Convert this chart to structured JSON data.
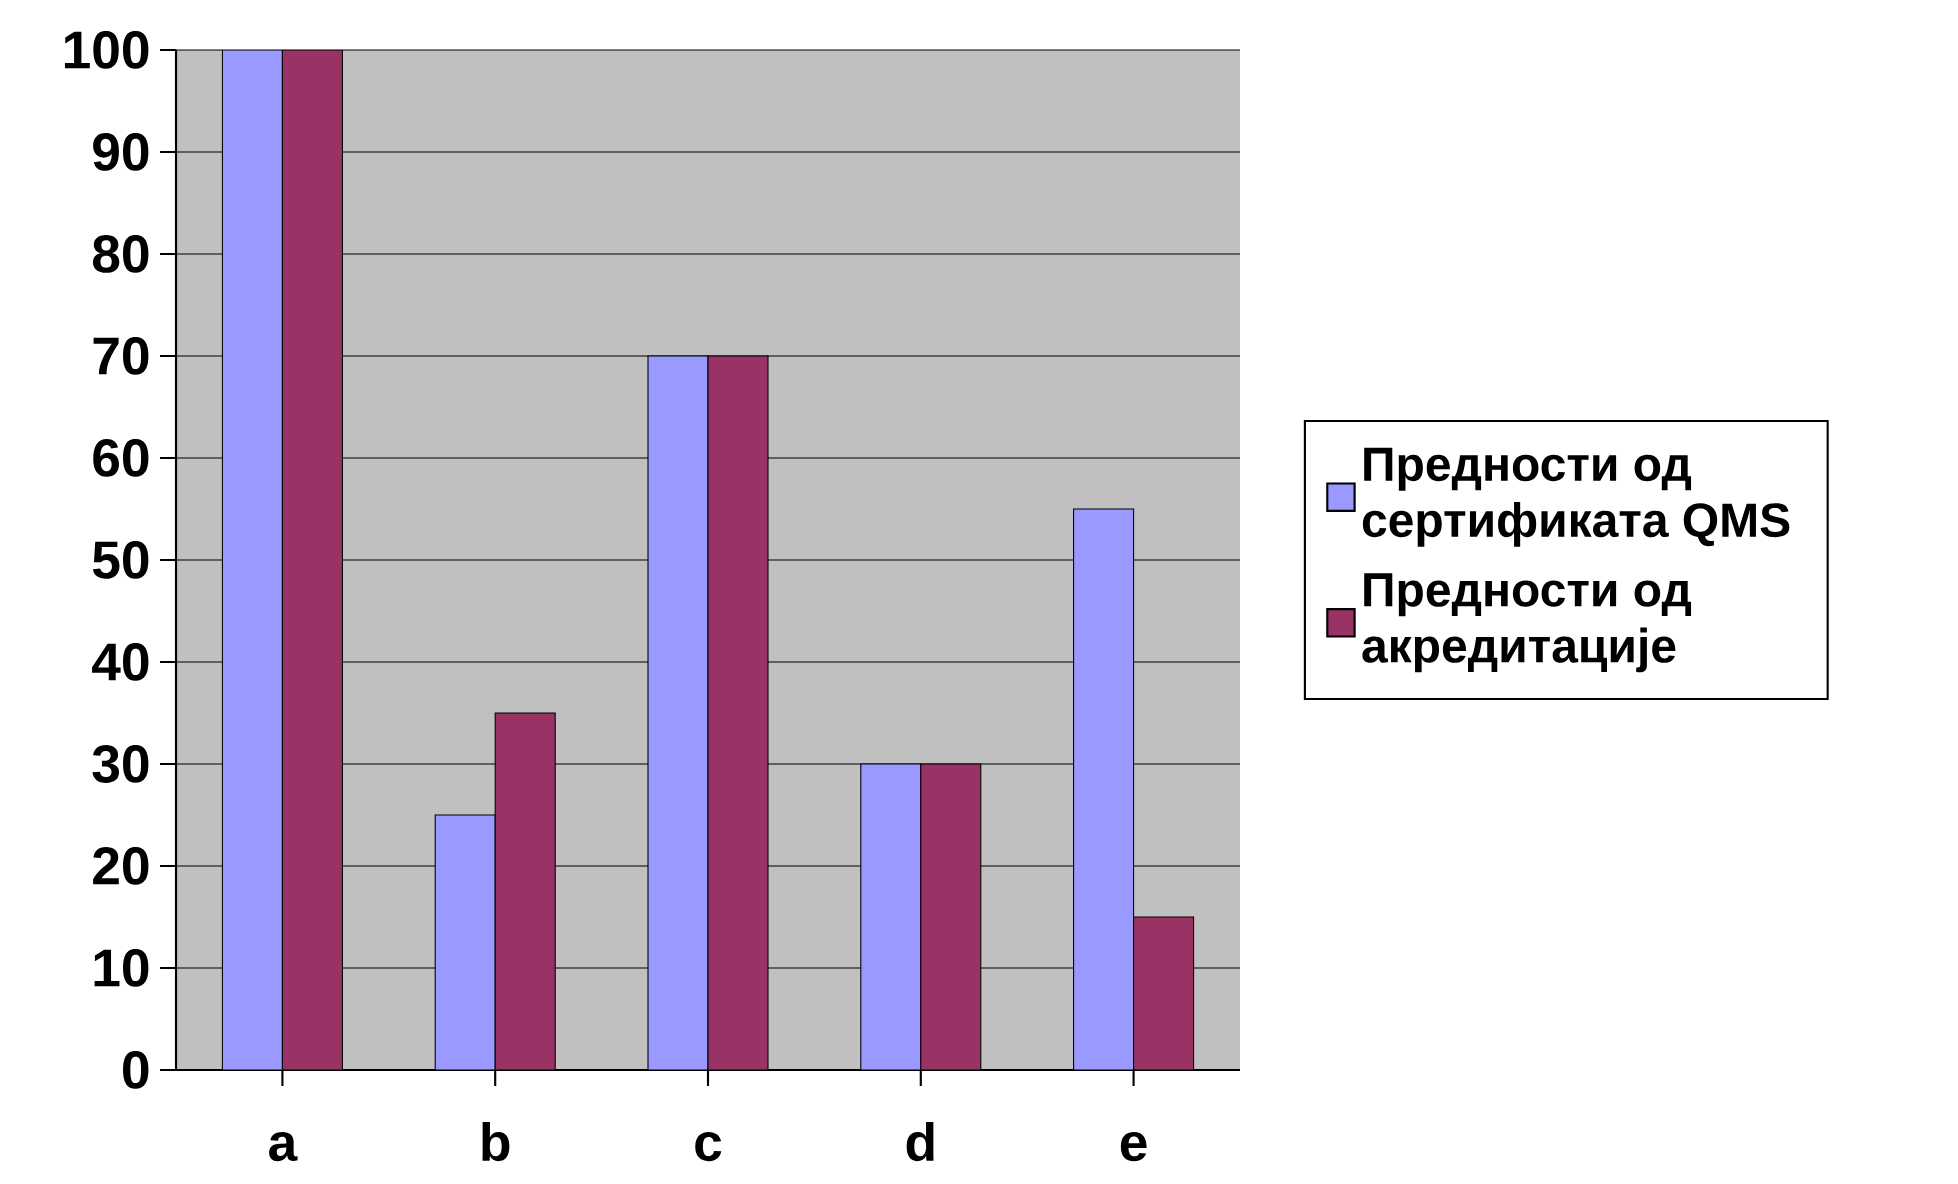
{
  "chart_data": {
    "type": "bar",
    "categories": [
      "a",
      "b",
      "c",
      "d",
      "e"
    ],
    "series": [
      {
        "name": "Предности од сертификата QMS",
        "color": "#9999ff",
        "values": [
          100,
          25,
          70,
          30,
          55
        ]
      },
      {
        "name": "Предности од акредитације",
        "color": "#993366",
        "values": [
          100,
          35,
          70,
          30,
          15
        ]
      }
    ],
    "ylim": [
      0,
      100
    ],
    "yticks": [
      0,
      10,
      20,
      30,
      40,
      50,
      60,
      70,
      80,
      90,
      100
    ],
    "grid": "y",
    "legend": "right"
  }
}
